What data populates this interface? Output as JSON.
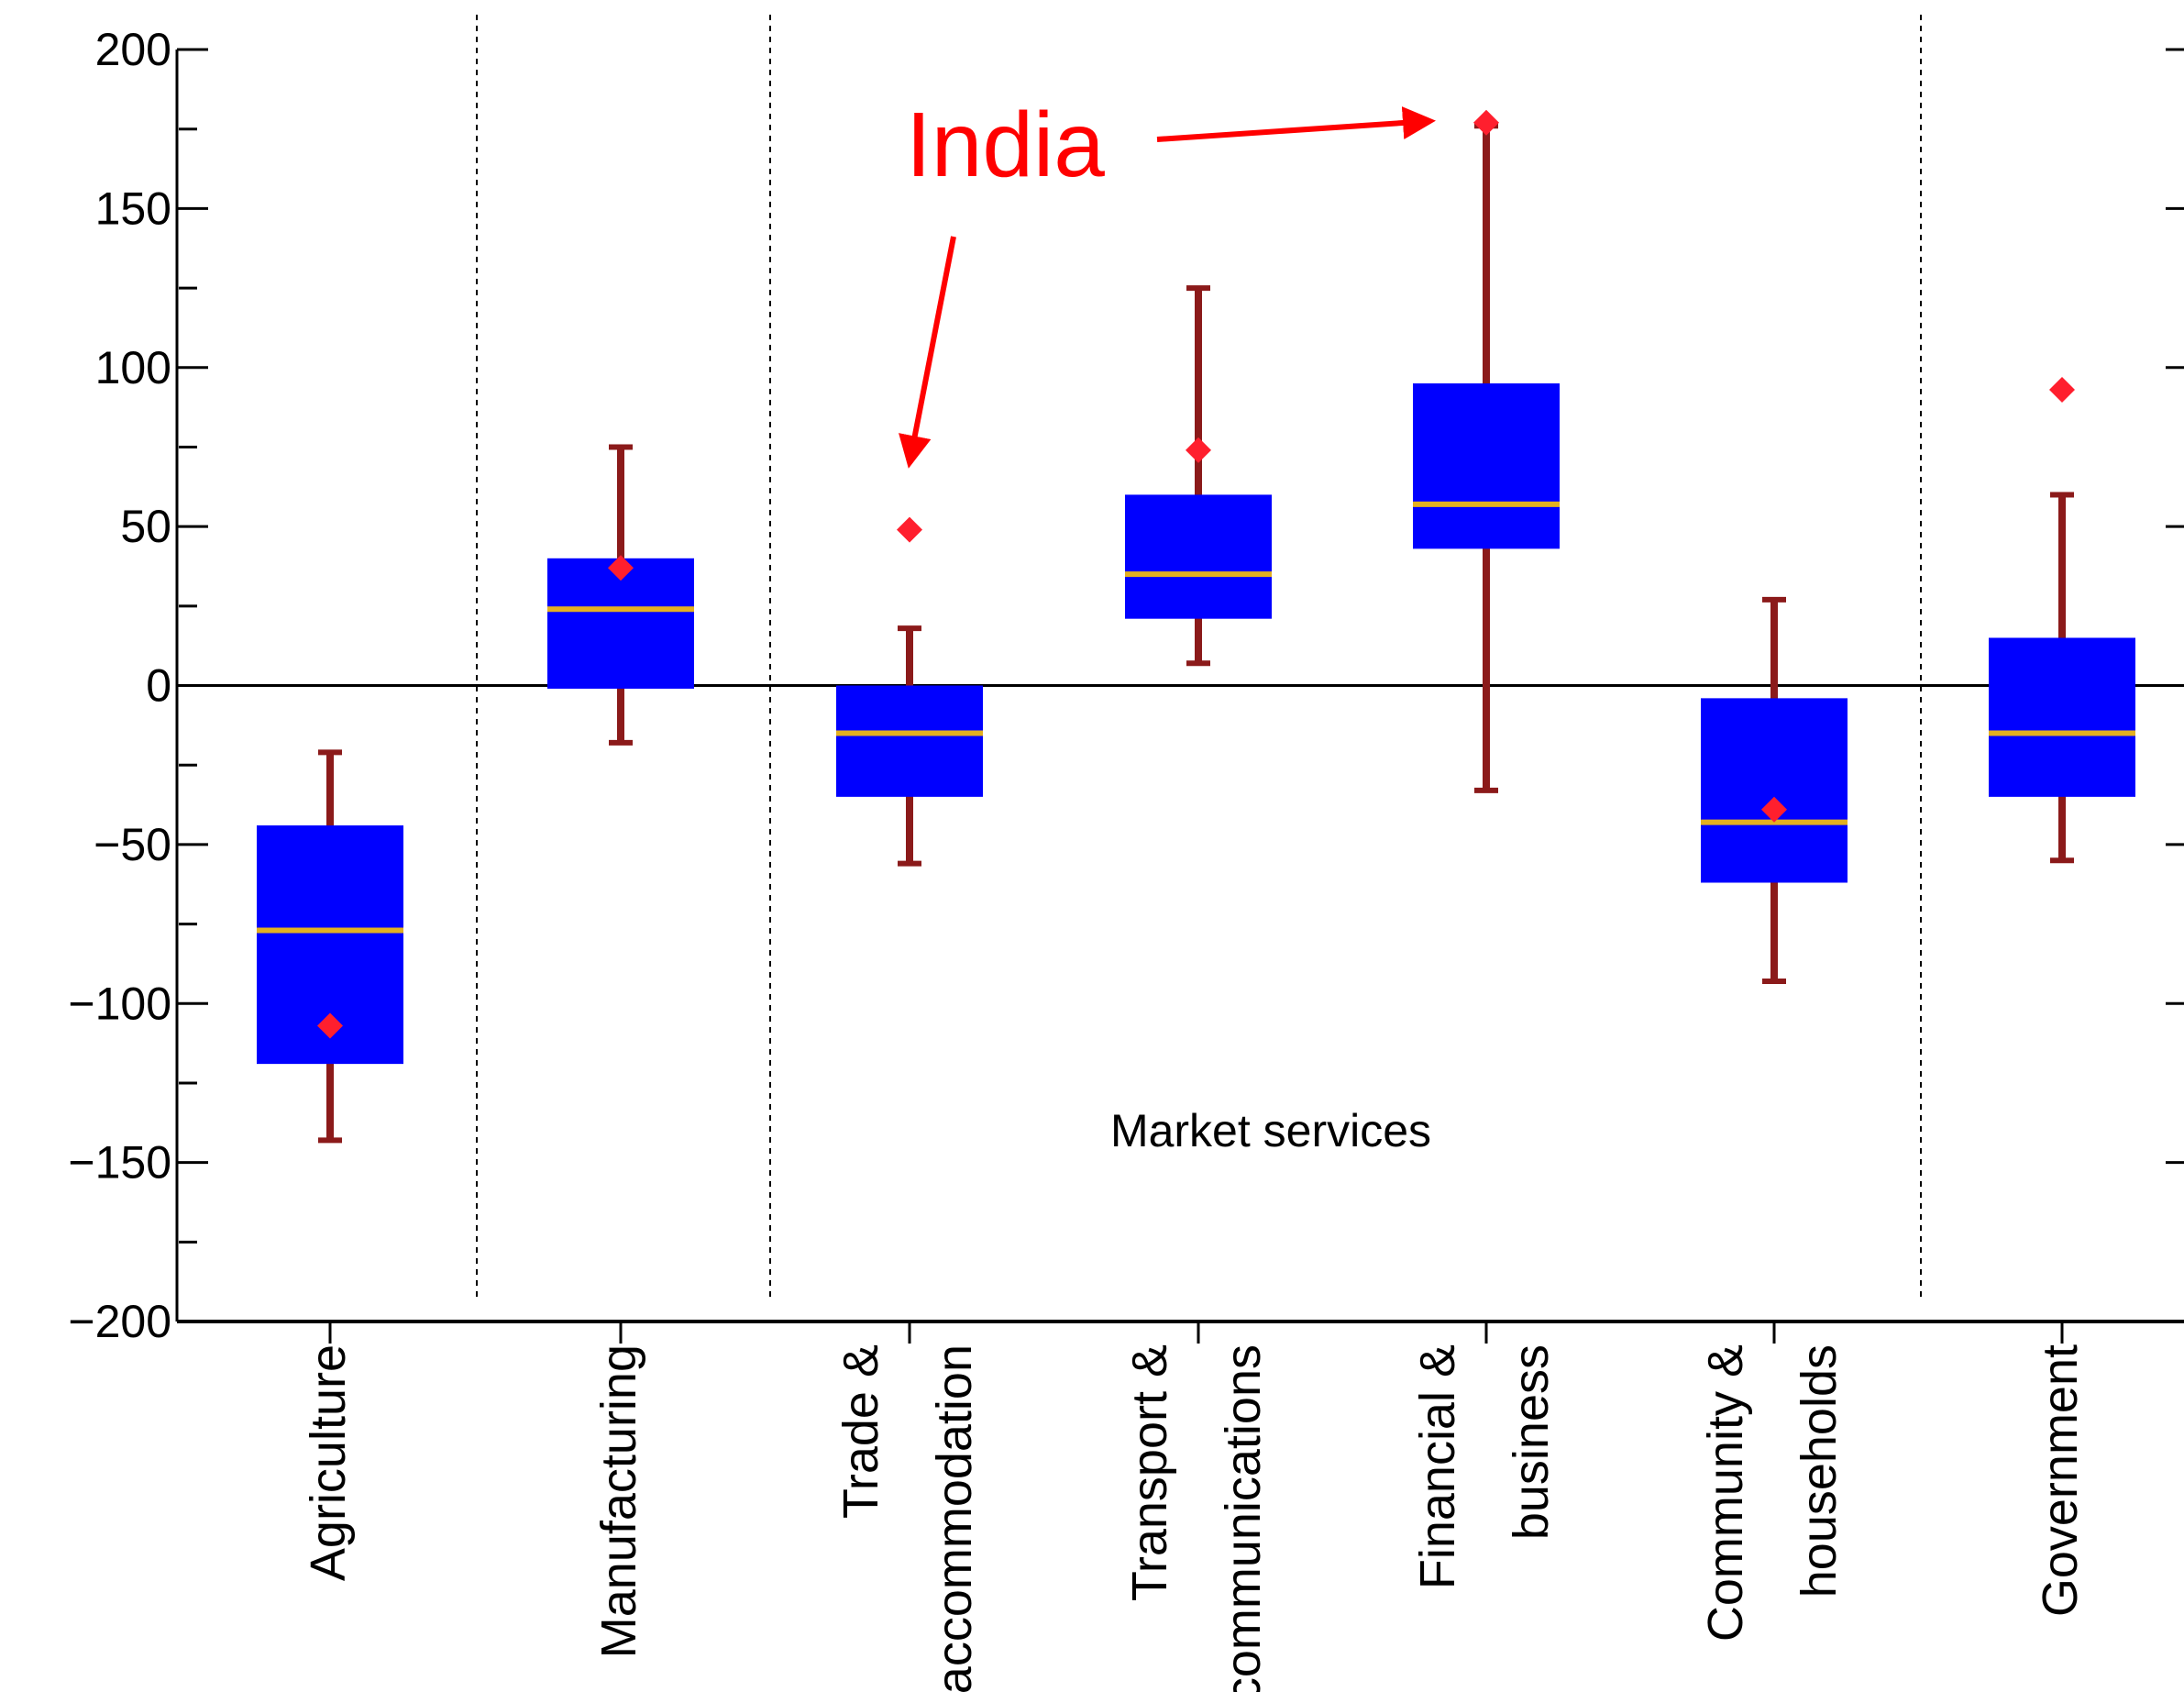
{
  "chart_data": {
    "type": "box",
    "title": "",
    "xlabel": "",
    "ylabel": "",
    "ylim": [
      -200,
      200
    ],
    "yticks": [
      200,
      150,
      100,
      50,
      0,
      -50,
      -100,
      -150,
      -200
    ],
    "ytick_labels": [
      "200",
      "150",
      "100",
      "50",
      "0",
      "−50",
      "−100",
      "−150",
      "−200"
    ],
    "grid": false,
    "categories": [
      {
        "label_lines": [
          "Agriculture"
        ]
      },
      {
        "label_lines": [
          "Manufacturing"
        ]
      },
      {
        "label_lines": [
          "Trade &",
          "accommodation"
        ]
      },
      {
        "label_lines": [
          "Transport &",
          "communications"
        ]
      },
      {
        "label_lines": [
          "Financial &",
          "business"
        ]
      },
      {
        "label_lines": [
          "Community &",
          "households"
        ]
      },
      {
        "label_lines": [
          "Government"
        ]
      }
    ],
    "boxes": [
      {
        "whisker_low": -143,
        "q1": -119,
        "median": -77,
        "q3": -44,
        "whisker_high": -21
      },
      {
        "whisker_low": -18,
        "q1": -1,
        "median": 24,
        "q3": 40,
        "whisker_high": 75
      },
      {
        "whisker_low": -56,
        "q1": -35,
        "median": -15,
        "q3": 0,
        "whisker_high": 18
      },
      {
        "whisker_low": 7,
        "q1": 21,
        "median": 35,
        "q3": 60,
        "whisker_high": 125
      },
      {
        "whisker_low": -33,
        "q1": 43,
        "median": 57,
        "q3": 95,
        "whisker_high": 176
      },
      {
        "whisker_low": -93,
        "q1": -62,
        "median": -43,
        "q3": -4,
        "whisker_high": 27
      },
      {
        "whisker_low": -55,
        "q1": -35,
        "median": -15,
        "q3": 15,
        "whisker_high": 60
      }
    ],
    "india_values": [
      -107,
      37,
      49,
      74,
      177,
      -39,
      93
    ],
    "annotations": {
      "india_label": "India",
      "region_label": "Market services"
    },
    "colors": {
      "box": "#0000ff",
      "median": "#e3b020",
      "whisker": "#8b1a1a",
      "india_marker": "#ff1f2e",
      "india_text": "#ff0000"
    }
  }
}
